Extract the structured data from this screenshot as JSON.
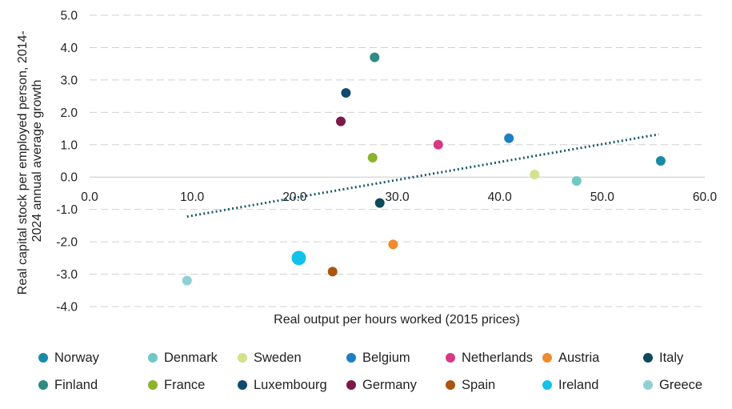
{
  "chart_data": {
    "type": "scatter",
    "xlabel": "Real output per hours worked (2015 prices)",
    "ylabel_lines": [
      "Real capital stock per employed person, 2014-",
      "2024 annual average growth"
    ],
    "xlim": [
      0,
      60
    ],
    "ylim": [
      -4,
      5
    ],
    "x_ticks": [
      "0.0",
      "10.0",
      "20.0",
      "30.0",
      "40.0",
      "50.0",
      "60.0"
    ],
    "y_ticks": [
      "5.0",
      "4.0",
      "3.0",
      "2.0",
      "1.0",
      "0.0",
      "-1.0",
      "-2.0",
      "-3.0",
      "-4.0"
    ],
    "grid": "horizontal-dashed",
    "legend_position": "bottom",
    "trendline": {
      "style": "dotted",
      "color": "#1b5a6b",
      "x": [
        9.5,
        55.5
      ],
      "y": [
        -1.22,
        1.32
      ]
    },
    "series": [
      {
        "name": "Norway",
        "color": "#1a8aa6",
        "x": 55.7,
        "y": 0.5,
        "size": "normal"
      },
      {
        "name": "Denmark",
        "color": "#6ec9c4",
        "x": 47.5,
        "y": -0.12,
        "size": "normal"
      },
      {
        "name": "Sweden",
        "color": "#d4e28a",
        "x": 43.4,
        "y": 0.08,
        "size": "normal"
      },
      {
        "name": "Belgium",
        "color": "#1f7fc4",
        "x": 40.9,
        "y": 1.2,
        "size": "normal"
      },
      {
        "name": "Netherlands",
        "color": "#d63a86",
        "x": 34.0,
        "y": 1.0,
        "size": "normal"
      },
      {
        "name": "Austria",
        "color": "#f08a2c",
        "x": 29.6,
        "y": -2.08,
        "size": "normal"
      },
      {
        "name": "Italy",
        "color": "#0e4a5a",
        "x": 28.3,
        "y": -0.8,
        "size": "normal"
      },
      {
        "name": "Finland",
        "color": "#2e8c82",
        "x": 27.8,
        "y": 3.7,
        "size": "normal"
      },
      {
        "name": "France",
        "color": "#8db22e",
        "x": 27.6,
        "y": 0.6,
        "size": "normal"
      },
      {
        "name": "Luxembourg",
        "color": "#0f4a6e",
        "x": 25.0,
        "y": 2.6,
        "size": "normal"
      },
      {
        "name": "Germany",
        "color": "#7a1a48",
        "x": 24.5,
        "y": 1.72,
        "size": "normal"
      },
      {
        "name": "Spain",
        "color": "#a9550f",
        "x": 23.7,
        "y": -2.92,
        "size": "normal"
      },
      {
        "name": "Ireland",
        "color": "#14c1ea",
        "x": 20.4,
        "y": -2.5,
        "size": "large"
      },
      {
        "name": "Greece",
        "color": "#8ed0d3",
        "x": 9.5,
        "y": -3.2,
        "size": "normal"
      }
    ]
  }
}
